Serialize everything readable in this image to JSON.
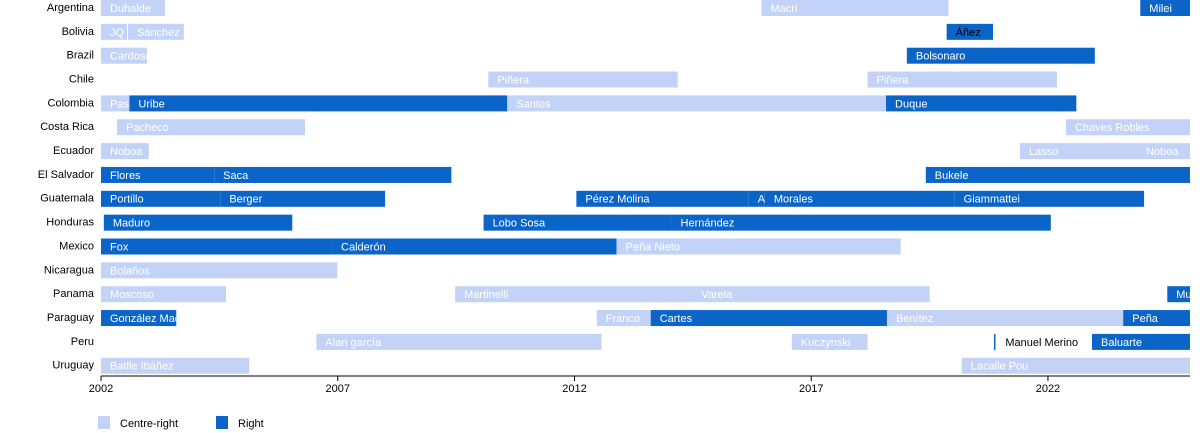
{
  "chart_data": {
    "type": "timeline",
    "categories": [
      "Argentina",
      "Bolivia",
      "Brazil",
      "Chile",
      "Colombia",
      "Costa Rica",
      "Ecuador",
      "El Salvador",
      "Guatemala",
      "Honduras",
      "Mexico",
      "Nicaragua",
      "Panama",
      "Paraguay",
      "Peru",
      "Uruguay"
    ],
    "xlim": [
      2002,
      2025
    ],
    "xticks": [
      2002,
      2007,
      2012,
      2017,
      2022
    ],
    "series": [
      {
        "name": "Centre-right",
        "color": "#c2d3f7"
      },
      {
        "name": "Right",
        "color": "#0b65c9"
      }
    ],
    "segments": [
      {
        "category": 0,
        "series": 0,
        "start": 2002.0,
        "end": 2003.35,
        "label": "Duhalde"
      },
      {
        "category": 0,
        "series": 0,
        "start": 2015.95,
        "end": 2019.9,
        "label": "Macri"
      },
      {
        "category": 0,
        "series": 1,
        "start": 2023.95,
        "end": 2025.0,
        "label": "Milei"
      },
      {
        "category": 1,
        "series": 0,
        "start": 2002.0,
        "end": 2002.55,
        "label": "JQ"
      },
      {
        "category": 1,
        "series": 0,
        "start": 2002.57,
        "end": 2003.75,
        "label": "Sánchez"
      },
      {
        "category": 1,
        "series": 1,
        "start": 2019.86,
        "end": 2020.84,
        "label": "Áñez",
        "label_color": "#000000"
      },
      {
        "category": 2,
        "series": 0,
        "start": 2002.0,
        "end": 2002.97,
        "label": "Cardoso"
      },
      {
        "category": 2,
        "series": 1,
        "start": 2019.02,
        "end": 2022.99,
        "label": "Bolsonaro"
      },
      {
        "category": 3,
        "series": 0,
        "start": 2010.18,
        "end": 2014.18,
        "label": "Piñera"
      },
      {
        "category": 3,
        "series": 0,
        "start": 2018.19,
        "end": 2022.19,
        "label": "Piñera"
      },
      {
        "category": 4,
        "series": 0,
        "start": 2002.0,
        "end": 2002.6,
        "label": "Pas"
      },
      {
        "category": 4,
        "series": 1,
        "start": 2002.6,
        "end": 2010.58,
        "label": "Uribe"
      },
      {
        "category": 4,
        "series": 0,
        "start": 2010.58,
        "end": 2018.58,
        "label": "Santos"
      },
      {
        "category": 4,
        "series": 1,
        "start": 2018.58,
        "end": 2022.6,
        "label": "Duque"
      },
      {
        "category": 5,
        "series": 0,
        "start": 2002.34,
        "end": 2006.31,
        "label": "Pacheco"
      },
      {
        "category": 5,
        "series": 0,
        "start": 2022.38,
        "end": 2025.0,
        "label": "Chaves Robles"
      },
      {
        "category": 6,
        "series": 0,
        "start": 2002.0,
        "end": 2003.01,
        "label": "Noboa"
      },
      {
        "category": 6,
        "series": 0,
        "start": 2021.41,
        "end": 2023.88,
        "label": "Lasso"
      },
      {
        "category": 6,
        "series": 0,
        "start": 2023.88,
        "end": 2025.0,
        "label": "Noboa"
      },
      {
        "category": 7,
        "series": 1,
        "start": 2002.0,
        "end": 2004.39,
        "label": "Flores"
      },
      {
        "category": 7,
        "series": 1,
        "start": 2004.39,
        "end": 2009.4,
        "label": "Saca"
      },
      {
        "category": 7,
        "series": 1,
        "start": 2019.42,
        "end": 2025.0,
        "label": "Bukele"
      },
      {
        "category": 8,
        "series": 1,
        "start": 2002.0,
        "end": 2004.52,
        "label": "Portillo"
      },
      {
        "category": 8,
        "series": 1,
        "start": 2004.52,
        "end": 2008.0,
        "label": "Berger"
      },
      {
        "category": 8,
        "series": 1,
        "start": 2012.04,
        "end": 2015.68,
        "label": "Pérez Molina"
      },
      {
        "category": 8,
        "series": 1,
        "start": 2015.68,
        "end": 2016.02,
        "label": "AM"
      },
      {
        "category": 8,
        "series": 1,
        "start": 2016.02,
        "end": 2020.03,
        "label": "Morales"
      },
      {
        "category": 8,
        "series": 1,
        "start": 2020.03,
        "end": 2024.03,
        "label": "Giammattei"
      },
      {
        "category": 9,
        "series": 1,
        "start": 2002.06,
        "end": 2006.04,
        "label": "Maduro"
      },
      {
        "category": 9,
        "series": 1,
        "start": 2010.08,
        "end": 2014.05,
        "label": "Lobo Sosa"
      },
      {
        "category": 9,
        "series": 1,
        "start": 2014.05,
        "end": 2022.06,
        "label": "Hernández"
      },
      {
        "category": 10,
        "series": 1,
        "start": 2002.0,
        "end": 2006.88,
        "label": "Fox"
      },
      {
        "category": 10,
        "series": 1,
        "start": 2006.88,
        "end": 2012.89,
        "label": "Calderón"
      },
      {
        "category": 10,
        "series": 0,
        "start": 2012.89,
        "end": 2018.89,
        "label": "Peña Nieto"
      },
      {
        "category": 11,
        "series": 0,
        "start": 2002.0,
        "end": 2006.99,
        "label": "Bolaños"
      },
      {
        "category": 12,
        "series": 0,
        "start": 2002.0,
        "end": 2004.64,
        "label": "Moscoso"
      },
      {
        "category": 12,
        "series": 0,
        "start": 2009.48,
        "end": 2014.49,
        "label": "Martinelli"
      },
      {
        "category": 12,
        "series": 0,
        "start": 2014.49,
        "end": 2019.5,
        "label": "Varela"
      },
      {
        "category": 12,
        "series": 1,
        "start": 2024.52,
        "end": 2025.0,
        "label": "Mu"
      },
      {
        "category": 13,
        "series": 1,
        "start": 2002.0,
        "end": 2003.59,
        "label": "González Mac"
      },
      {
        "category": 13,
        "series": 0,
        "start": 2012.47,
        "end": 2013.61,
        "label": "Franco"
      },
      {
        "category": 13,
        "series": 1,
        "start": 2013.61,
        "end": 2018.6,
        "label": "Cartes"
      },
      {
        "category": 13,
        "series": 0,
        "start": 2018.6,
        "end": 2023.59,
        "label": "Benítez"
      },
      {
        "category": 13,
        "series": 1,
        "start": 2023.59,
        "end": 2025.0,
        "label": "Peña"
      },
      {
        "category": 14,
        "series": 0,
        "start": 2006.55,
        "end": 2012.57,
        "label": "Alan garcía"
      },
      {
        "category": 14,
        "series": 0,
        "start": 2016.59,
        "end": 2018.19,
        "label": "Kuczynski"
      },
      {
        "category": 14,
        "series": 1,
        "start": 2020.86,
        "end": 2020.89,
        "label": "Manuel Merino",
        "label_color": "#000000"
      },
      {
        "category": 14,
        "series": 1,
        "start": 2022.93,
        "end": 2025.0,
        "label": "Baluarte"
      },
      {
        "category": 15,
        "series": 0,
        "start": 2002.0,
        "end": 2005.13,
        "label": "Batlle Ibáñez"
      },
      {
        "category": 15,
        "series": 0,
        "start": 2020.18,
        "end": 2025.0,
        "label": "Lacalle Pou"
      }
    ]
  }
}
